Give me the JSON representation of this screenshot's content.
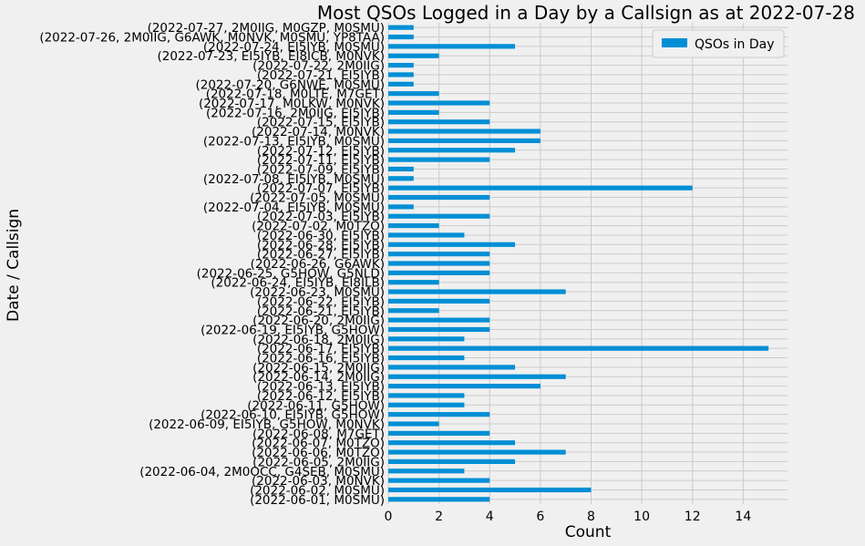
{
  "chart_data": {
    "type": "bar",
    "orientation": "horizontal",
    "title": "Most QSOs Logged in a Day by a Callsign as at 2022-07-28",
    "xlabel": "Count",
    "ylabel": "Date / Callsign",
    "xlim": [
      0,
      15.75
    ],
    "xticks": [
      0,
      2,
      4,
      6,
      8,
      10,
      12,
      14
    ],
    "grid": true,
    "legend_position": "upper-right",
    "bar_color": "#008fd5",
    "series": [
      {
        "name": "QSOs in Day"
      }
    ],
    "categories": [
      "(2022-06-01, M0SMU)",
      "(2022-06-02, M0SMU)",
      "(2022-06-03, M0NVK)",
      "(2022-06-04, 2M0OCC, G4SEB, M0SMU)",
      "(2022-06-05, 2M0IIG)",
      "(2022-06-06, M0TZO)",
      "(2022-06-07, M0TZO)",
      "(2022-06-08, M7GET)",
      "(2022-06-09, EI5IYB, G5HOW, M0NVK)",
      "(2022-06-10, EI5IYB, G5HOW)",
      "(2022-06-11, G5HOW)",
      "(2022-06-12, EI5IYB)",
      "(2022-06-13, EI5IYB)",
      "(2022-06-14, 2M0IIG)",
      "(2022-06-15, 2M0IIG)",
      "(2022-06-16, EI5IYB)",
      "(2022-06-17, EI5IYB)",
      "(2022-06-18, 2M0IIG)",
      "(2022-06-19, EI5IYB, G5HOW)",
      "(2022-06-20, 2M0IIG)",
      "(2022-06-21, EI5IYB)",
      "(2022-06-22, EI5IYB)",
      "(2022-06-23, M0SMU)",
      "(2022-06-24, EI5IYB, EI8ILB)",
      "(2022-06-25, G5HOW, G5NLD)",
      "(2022-06-26, G6AWK)",
      "(2022-06-27, EI5IYB)",
      "(2022-06-28, EI5IYB)",
      "(2022-06-30, EI5IYB)",
      "(2022-07-02, M0TZO)",
      "(2022-07-03, EI5IYB)",
      "(2022-07-04, EI5IYB, M0SMU)",
      "(2022-07-05, M0SMU)",
      "(2022-07-07, EI5IYB)",
      "(2022-07-08, EI5IYB, M0SMU)",
      "(2022-07-09, EI5IYB)",
      "(2022-07-11, EI5IYB)",
      "(2022-07-12, EI5IYB)",
      "(2022-07-13, EI5IYB, M0SMU)",
      "(2022-07-14, M0NVK)",
      "(2022-07-15, EI5IYB)",
      "(2022-07-16, 2M0IIG, EI5IYB)",
      "(2022-07-17, M0LKW, M0NVK)",
      "(2022-07-18, M0LTE, M7GET)",
      "(2022-07-20, G6NWE, M0SMU)",
      "(2022-07-21, EI5IYB)",
      "(2022-07-22, 2M0IIG)",
      "(2022-07-23, EI5IYB, EI8ICB, M0NVK)",
      "(2022-07-24, EI5IYB, M0SMU)",
      "(2022-07-26, 2M0IIG, G6AWK, M0NVK, M0SMU, YP8TAA)",
      "(2022-07-27, 2M0IIG, M0GZP, M0SMU)"
    ],
    "values": [
      4,
      8,
      4,
      3,
      5,
      7,
      5,
      4,
      2,
      4,
      3,
      3,
      6,
      7,
      5,
      3,
      15,
      3,
      4,
      4,
      2,
      4,
      7,
      2,
      4,
      4,
      4,
      5,
      3,
      2,
      4,
      1,
      4,
      12,
      1,
      1,
      4,
      5,
      6,
      6,
      4,
      2,
      4,
      2,
      1,
      1,
      1,
      2,
      5,
      1,
      1
    ]
  }
}
